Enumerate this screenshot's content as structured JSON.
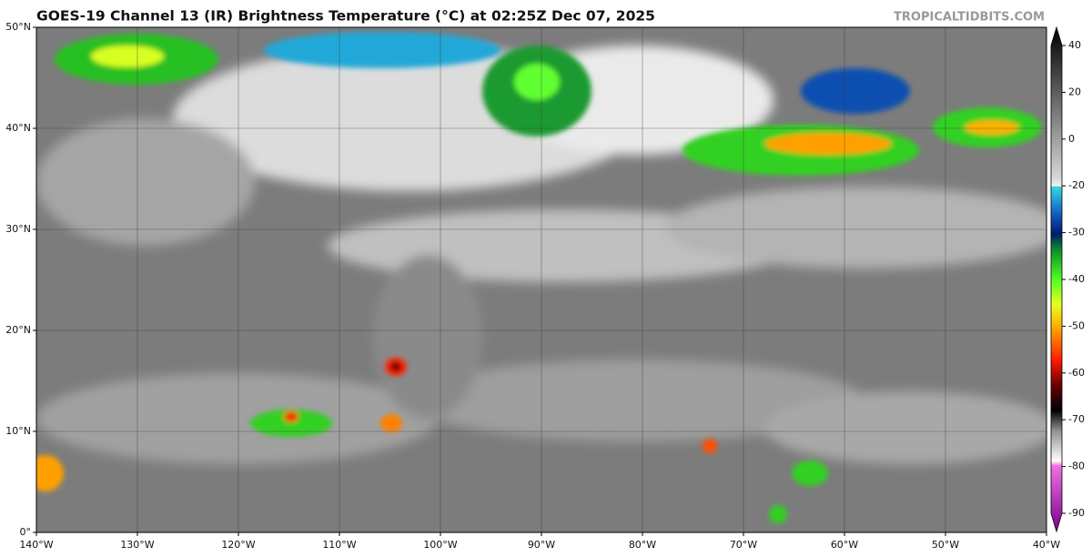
{
  "map": {
    "title": "GOES-19 Channel 13 (IR) Brightness Temperature (°C) at 02:25Z Dec 07, 2025",
    "credit": "TROPICALTIDBITS.COM",
    "lonlim": [
      -140,
      -40
    ],
    "latlim": [
      0,
      50
    ],
    "lat_ticks": [
      {
        "value": 50,
        "label": "50°N"
      },
      {
        "value": 40,
        "label": "40°N"
      },
      {
        "value": 30,
        "label": "30°N"
      },
      {
        "value": 20,
        "label": "20°N"
      },
      {
        "value": 10,
        "label": "10°N"
      },
      {
        "value": 0,
        "label": "0°"
      }
    ],
    "lon_ticks": [
      {
        "value": -140,
        "label": "140°W"
      },
      {
        "value": -130,
        "label": "130°W"
      },
      {
        "value": -120,
        "label": "120°W"
      },
      {
        "value": -110,
        "label": "110°W"
      },
      {
        "value": -100,
        "label": "100°W"
      },
      {
        "value": -90,
        "label": "90°W"
      },
      {
        "value": -80,
        "label": "80°W"
      },
      {
        "value": -70,
        "label": "70°W"
      },
      {
        "value": -60,
        "label": "60°W"
      },
      {
        "value": -50,
        "label": "50°W"
      },
      {
        "value": -40,
        "label": "40°W"
      }
    ],
    "colorbar_ticks": [
      40,
      20,
      0,
      -20,
      -30,
      -40,
      -50,
      -60,
      -70,
      -80,
      -90
    ]
  }
}
